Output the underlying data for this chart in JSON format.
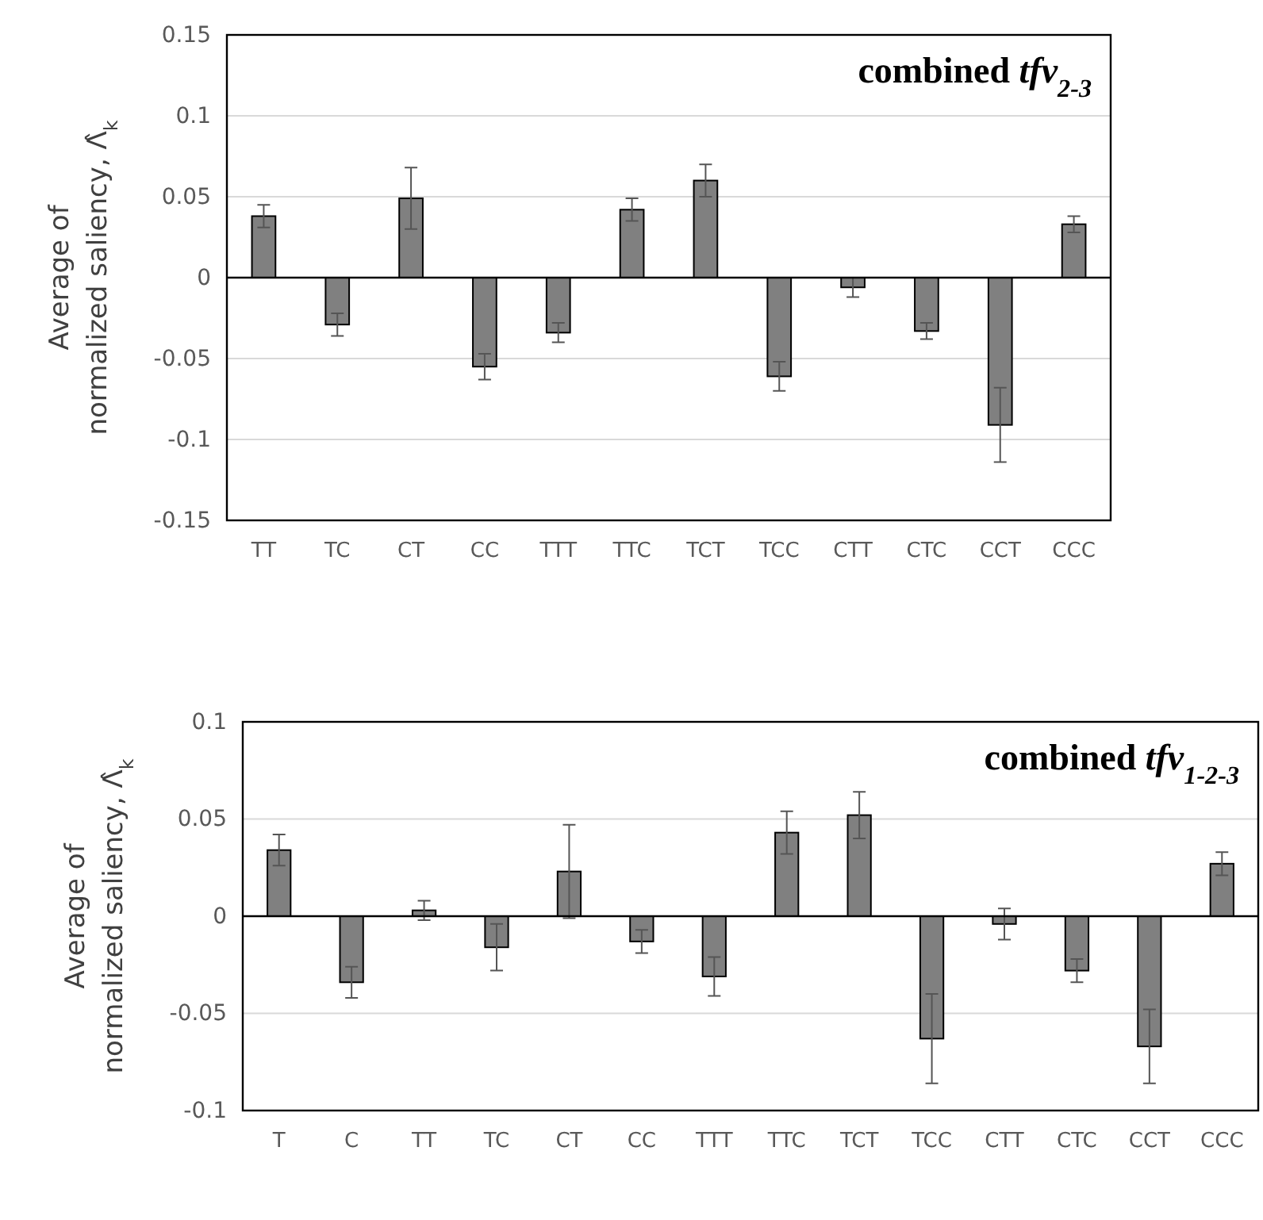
{
  "chart_data": [
    {
      "type": "bar",
      "title": "combined tfv$_{2-3}$",
      "ylabel": "Average of normalized saliency, Λ̂$_{k}$",
      "categories": [
        "TT",
        "TC",
        "CT",
        "CC",
        "TTT",
        "TTC",
        "TCT",
        "TCC",
        "CTT",
        "CTC",
        "CCT",
        "CCC"
      ],
      "values": [
        0.038,
        -0.029,
        0.049,
        -0.055,
        -0.034,
        0.042,
        0.06,
        -0.061,
        -0.006,
        -0.033,
        -0.091,
        0.033
      ],
      "errors": [
        0.007,
        0.007,
        0.019,
        0.008,
        0.006,
        0.007,
        0.01,
        0.009,
        0.006,
        0.005,
        0.023,
        0.005
      ],
      "color": "#808080",
      "ylim": [
        -0.15,
        0.15
      ],
      "yticks": [
        -0.15,
        -0.1,
        -0.05,
        0,
        0.05,
        0.1,
        0.15
      ],
      "grid": "y"
    },
    {
      "type": "bar",
      "title": "combined tfv$_{1-2-3}$",
      "ylabel": "Average of normalized saliency, Λ̂$_{k}$",
      "categories": [
        "T",
        "C",
        "TT",
        "TC",
        "CT",
        "CC",
        "TTT",
        "TTC",
        "TCT",
        "TCC",
        "CTT",
        "CTC",
        "CCT",
        "CCC"
      ],
      "values": [
        0.034,
        -0.034,
        0.003,
        -0.016,
        0.023,
        -0.013,
        -0.031,
        0.043,
        0.052,
        -0.063,
        -0.004,
        -0.028,
        -0.067,
        0.027
      ],
      "errors": [
        0.008,
        0.008,
        0.005,
        0.012,
        0.024,
        0.006,
        0.01,
        0.011,
        0.012,
        0.023,
        0.008,
        0.006,
        0.019,
        0.006
      ],
      "color": "#808080",
      "ylim": [
        -0.1,
        0.1
      ],
      "yticks": [
        -0.1,
        -0.05,
        0,
        0.05,
        0.1
      ],
      "grid": "y"
    }
  ]
}
